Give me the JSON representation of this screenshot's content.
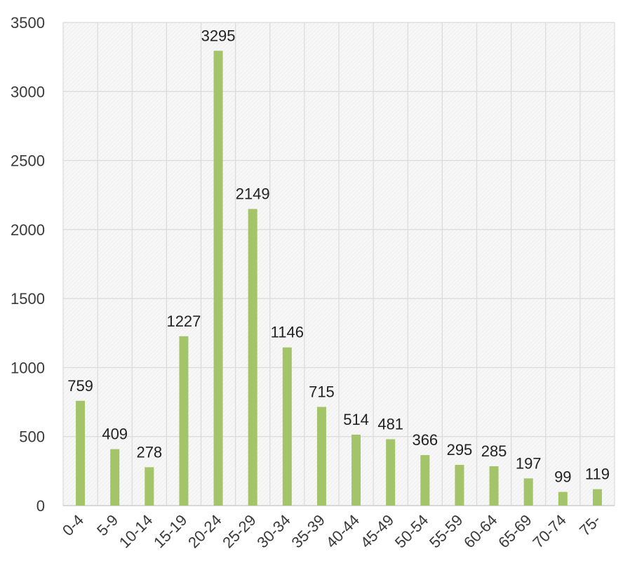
{
  "chart_data": {
    "type": "bar",
    "title": "",
    "xlabel": "",
    "ylabel": "",
    "categories": [
      "0-4",
      "5-9",
      "10-14",
      "15-19",
      "20-24",
      "25-29",
      "30-34",
      "35-39",
      "40-44",
      "45-49",
      "50-54",
      "55-59",
      "60-64",
      "65-69",
      "70-74",
      "75-"
    ],
    "values": [
      759,
      409,
      278,
      1227,
      3295,
      2149,
      1146,
      715,
      514,
      481,
      366,
      295,
      285,
      197,
      99,
      119
    ],
    "ylim": [
      0,
      3500
    ],
    "yticks": [
      "0",
      "500",
      "1000",
      "1500",
      "2000",
      "2500",
      "3000",
      "3500"
    ],
    "grid": "on",
    "legend": "none",
    "bar_color": "#a3c469",
    "background_color": "#f4f4f4",
    "grid_color": "#dadada"
  }
}
